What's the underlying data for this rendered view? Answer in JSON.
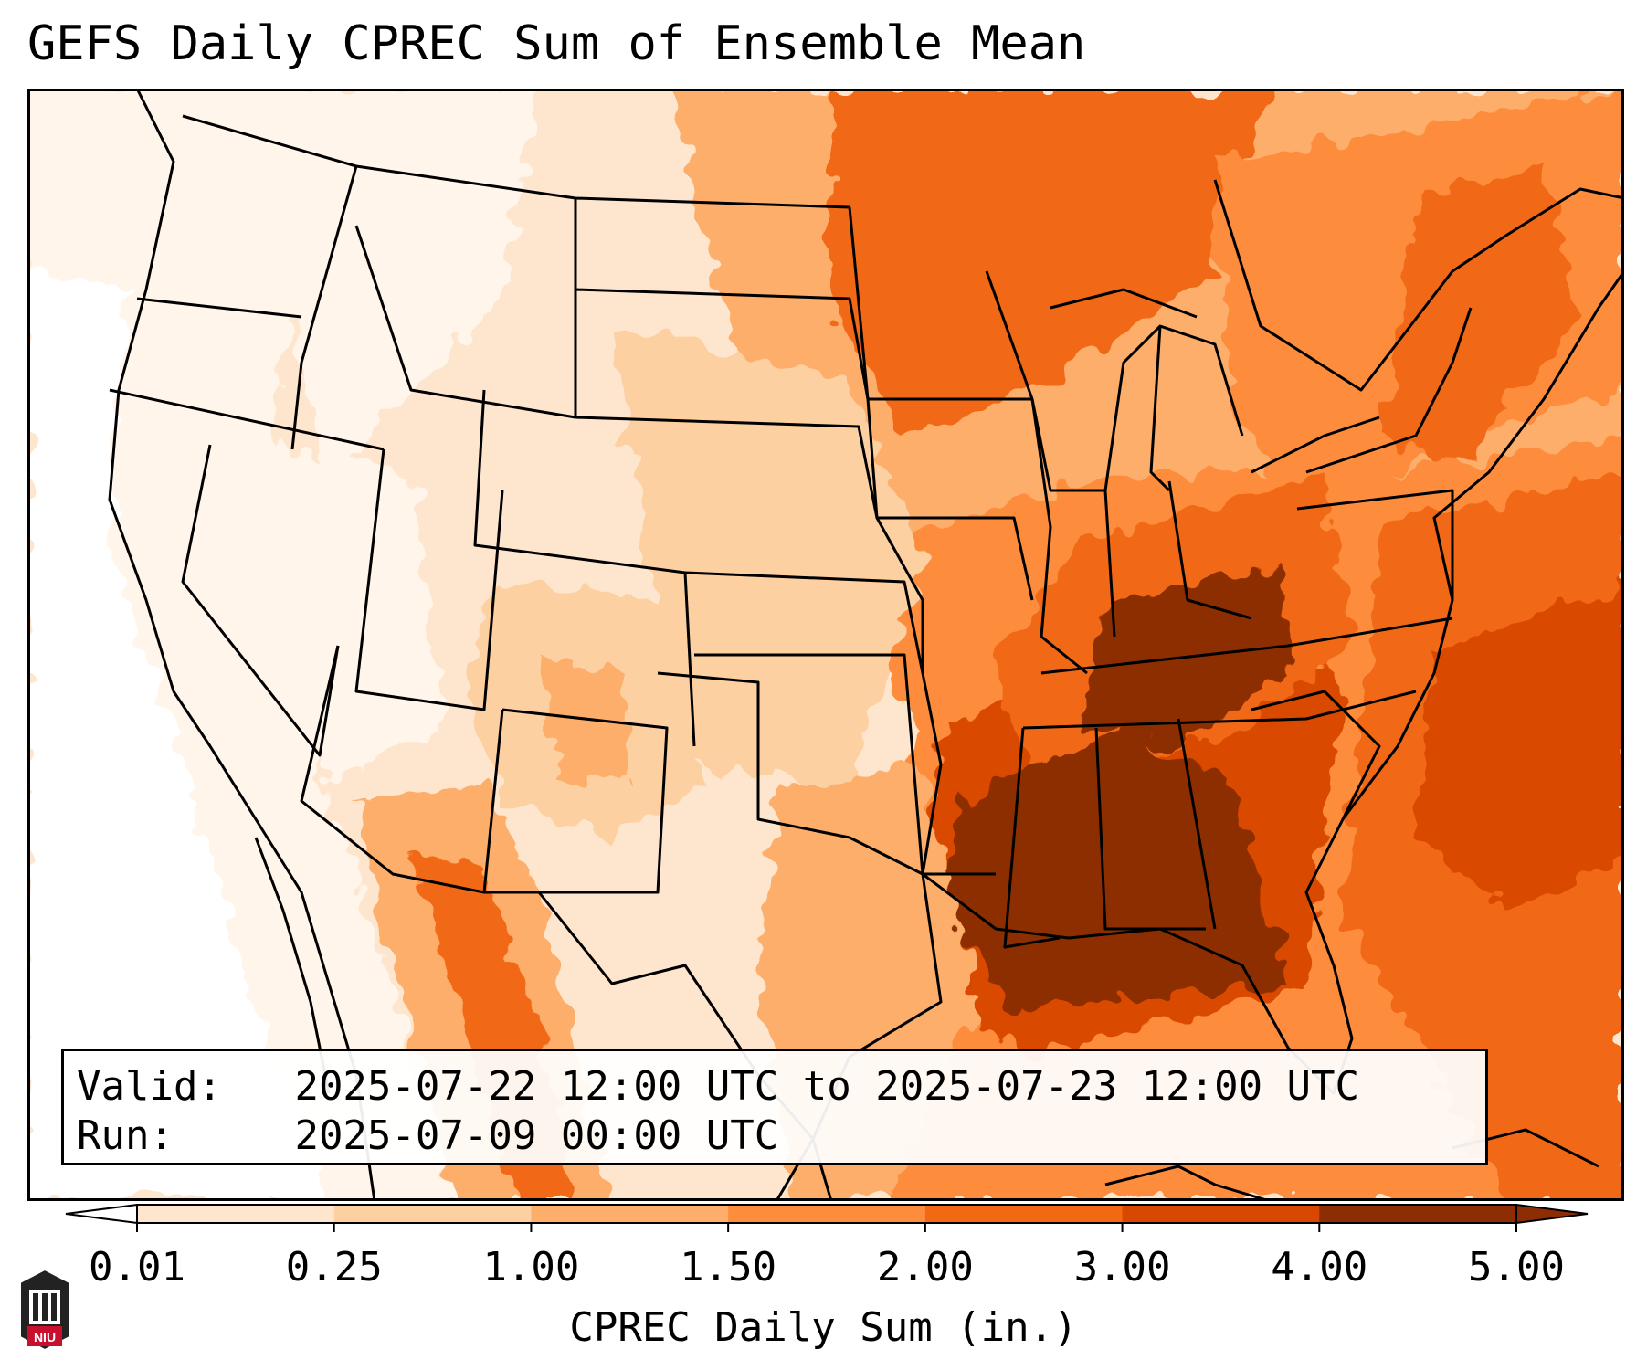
{
  "title": "GEFS Daily CPREC Sum of Ensemble Mean",
  "info": {
    "valid_label": "Valid:",
    "valid_value": "2025-07-22 12:00 UTC to 2025-07-23 12:00 UTC",
    "run_label": "Run:",
    "run_value": "2025-07-09 00:00 UTC"
  },
  "colorbar": {
    "label": "CPREC Daily Sum (in.)",
    "ticks": [
      "0.01",
      "0.25",
      "1.00",
      "1.50",
      "2.00",
      "3.00",
      "4.00",
      "5.00"
    ],
    "colors": [
      "#fff5eb",
      "#fee6ce",
      "#fdd0a2",
      "#fdae6b",
      "#fd8d3c",
      "#f16913",
      "#d94801",
      "#8c2d04"
    ],
    "under_color": "#ffffff",
    "over_color": "#8c2d04"
  },
  "logo": {
    "text": "NIU",
    "color": "#c8102e"
  },
  "map": {
    "projection": "lambert-conformal",
    "region": "CONUS",
    "overlays": [
      "state-borders",
      "coastlines"
    ]
  }
}
